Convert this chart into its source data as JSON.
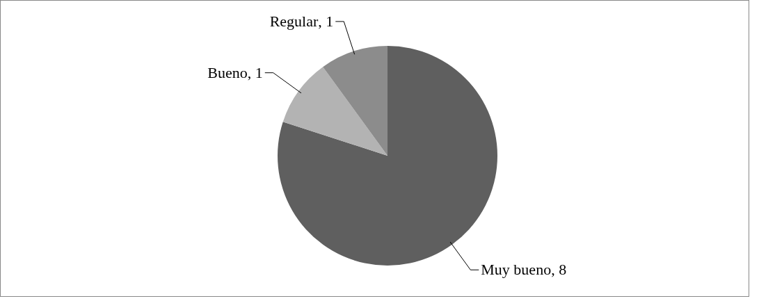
{
  "chart_data": {
    "type": "pie",
    "categories": [
      "Muy bueno",
      "Bueno",
      "Regular"
    ],
    "values": [
      8,
      1,
      1
    ],
    "colors": [
      "#5f5f5f",
      "#b3b3b3",
      "#8c8c8c"
    ],
    "value_labels": [
      ", 8",
      ", 1",
      ", 1"
    ],
    "legend": false
  }
}
